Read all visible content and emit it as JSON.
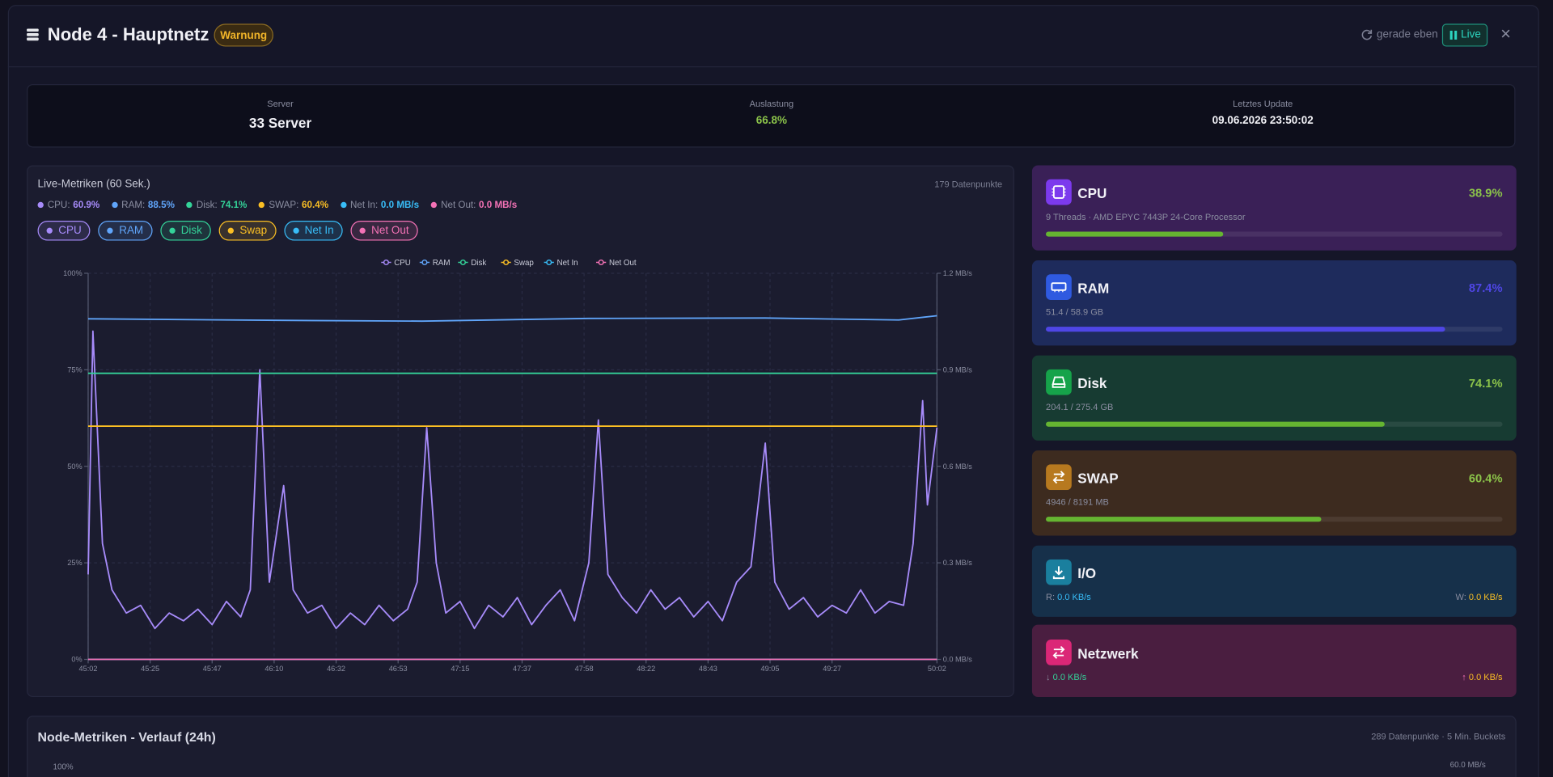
{
  "header": {
    "title": "Node 4 - Hauptnetz",
    "badge": "Warnung",
    "refresh": "gerade eben",
    "live": "Live",
    "close": "×"
  },
  "summary": [
    {
      "label": "Server",
      "value": "33 Server"
    },
    {
      "label": "Auslastung",
      "value": "66.8%"
    },
    {
      "label": "Letztes Update",
      "value": "09.06.2026 23:50:02"
    }
  ],
  "live": {
    "title": "Live-Metriken (60 Sek.)",
    "points": "179 Datenpunkte",
    "current": [
      {
        "label": "CPU:",
        "value": "60.9%"
      },
      {
        "label": "RAM:",
        "value": "88.5%"
      },
      {
        "label": "Disk:",
        "value": "74.1%"
      },
      {
        "label": "SWAP:",
        "value": "60.4%"
      },
      {
        "label": "Net In:",
        "value": "0.0 MB/s"
      },
      {
        "label": "Net Out:",
        "value": "0.0 MB/s"
      }
    ]
  },
  "chart_data": {
    "type": "line",
    "xlim": [
      0,
      178
    ],
    "xticks": [
      {
        "value": 0,
        "label": "45:02"
      },
      {
        "value": 13,
        "label": "45:25"
      },
      {
        "value": 26,
        "label": "45:47"
      },
      {
        "value": 39,
        "label": "46:10"
      },
      {
        "value": 52,
        "label": "46:32"
      },
      {
        "value": 65,
        "label": "46:53"
      },
      {
        "value": 78,
        "label": "47:15"
      },
      {
        "value": 91,
        "label": "47:37"
      },
      {
        "value": 104,
        "label": "47:58"
      },
      {
        "value": 117,
        "label": "48:22"
      },
      {
        "value": 130,
        "label": "48:43"
      },
      {
        "value": 143,
        "label": "49:05"
      },
      {
        "value": 156,
        "label": "49:27"
      },
      {
        "value": 178,
        "label": "50:02"
      }
    ],
    "ylim": [
      0,
      100
    ],
    "yticks": [
      {
        "value": 0,
        "label": "0%"
      },
      {
        "value": 25,
        "label": "25%"
      },
      {
        "value": 50,
        "label": "50%"
      },
      {
        "value": 75,
        "label": "75%"
      },
      {
        "value": 100,
        "label": "100%"
      }
    ],
    "y2lim": [
      0,
      1.2
    ],
    "y2ticks": [
      {
        "value": 0,
        "label": "0.0 MB/s"
      },
      {
        "value": 0.3,
        "label": "0.3 MB/s"
      },
      {
        "value": 0.6,
        "label": "0.6 MB/s"
      },
      {
        "value": 0.9,
        "label": "0.9 MB/s"
      },
      {
        "value": 1.2,
        "label": "1.2 MB/s"
      }
    ],
    "grid": true,
    "legend": "top",
    "series": [
      {
        "name": "CPU",
        "color": "#a78bfa",
        "x": [
          0,
          1,
          3,
          5,
          8,
          11,
          14,
          17,
          20,
          23,
          26,
          29,
          32,
          34,
          36,
          38,
          41,
          43,
          46,
          49,
          52,
          55,
          58,
          61,
          64,
          67,
          69,
          71,
          73,
          75,
          78,
          81,
          84,
          87,
          90,
          93,
          96,
          99,
          102,
          105,
          107,
          109,
          112,
          115,
          118,
          121,
          124,
          127,
          130,
          133,
          136,
          139,
          142,
          144,
          147,
          150,
          153,
          156,
          159,
          162,
          165,
          168,
          171,
          173,
          175,
          176,
          178
        ],
        "values": [
          22,
          85,
          30,
          18,
          12,
          14,
          8,
          12,
          10,
          13,
          9,
          15,
          11,
          18,
          75,
          20,
          45,
          18,
          12,
          14,
          8,
          12,
          9,
          14,
          10,
          13,
          20,
          60,
          25,
          12,
          15,
          8,
          14,
          11,
          16,
          9,
          14,
          18,
          10,
          25,
          62,
          22,
          16,
          12,
          18,
          13,
          16,
          11,
          15,
          10,
          20,
          24,
          56,
          20,
          13,
          16,
          11,
          14,
          12,
          18,
          12,
          15,
          14,
          30,
          67,
          40,
          60
        ]
      },
      {
        "name": "RAM",
        "color": "#60a5fa",
        "x": [
          0,
          40,
          70,
          105,
          142,
          170,
          178
        ],
        "values": [
          88.2,
          87.8,
          87.6,
          88.3,
          88.4,
          87.9,
          89
        ]
      },
      {
        "name": "Disk",
        "color": "#34d399",
        "x": [
          0,
          178
        ],
        "values": [
          74.1,
          74.1
        ]
      },
      {
        "name": "Swap",
        "color": "#fbbf24",
        "x": [
          0,
          178
        ],
        "values": [
          60.4,
          60.4
        ]
      },
      {
        "name": "Net In",
        "color": "#38bdf8",
        "axis": "y2",
        "x": [
          0,
          178
        ],
        "values": [
          0,
          0
        ]
      },
      {
        "name": "Net Out",
        "color": "#f472b6",
        "axis": "y2",
        "x": [
          0,
          178
        ],
        "values": [
          0,
          0
        ]
      }
    ]
  },
  "cards": [
    {
      "name": "CPU",
      "value_label": "38.9%",
      "percent": 38.9,
      "detail": "9 Threads · AMD EPYC 7443P 24-Core Processor",
      "color": "#65b531"
    },
    {
      "name": "RAM",
      "value_label": "87.4%",
      "percent": 87.4,
      "detail": "51.4 / 58.9 GB",
      "color": "#4f46e5"
    },
    {
      "name": "Disk",
      "value_label": "74.1%",
      "percent": 74.1,
      "detail": "204.1 / 275.4 GB",
      "color": "#65b531"
    },
    {
      "name": "SWAP",
      "value_label": "60.4%",
      "percent": 60.4,
      "detail": "4946 / 8191 MB",
      "color": "#65b531"
    }
  ],
  "io": {
    "title": "I/O",
    "read_label": "R:",
    "read": "0.0 KB/s",
    "write_label": "W:",
    "write": "0.0 KB/s"
  },
  "net": {
    "title": "Netzwerk",
    "down_label": "↓",
    "down": "0.0 KB/s",
    "up_label": "↑",
    "up": "0.0 KB/s"
  },
  "history": {
    "title": "Node-Metriken - Verlauf (24h)",
    "points": "289 Datenpunkte · 5 Min. Buckets",
    "y_top": "100%",
    "y2_top": "60.0 MB/s"
  }
}
